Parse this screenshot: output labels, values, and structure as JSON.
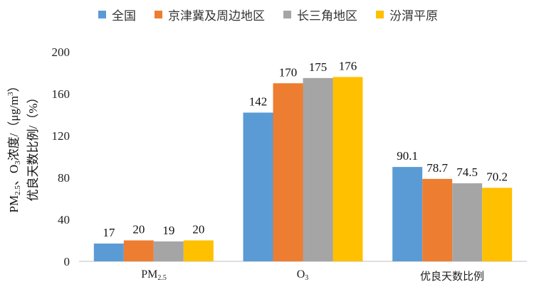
{
  "chart_data": {
    "type": "bar",
    "categories": [
      {
        "base": "PM",
        "sub": "2.5"
      },
      {
        "base": "O",
        "sub": "3"
      },
      {
        "base": "优良天数比例",
        "sub": ""
      }
    ],
    "series": [
      {
        "name": "全国",
        "color": "#5b9bd5",
        "values": [
          17,
          142,
          90.1
        ]
      },
      {
        "name": "京津冀及周边地区",
        "color": "#ed7d31",
        "values": [
          20,
          170,
          78.7
        ]
      },
      {
        "name": "长三角地区",
        "color": "#a5a5a5",
        "values": [
          19,
          175,
          74.5
        ]
      },
      {
        "name": "汾渭平原",
        "color": "#ffc000",
        "values": [
          20,
          176,
          70.2
        ]
      }
    ],
    "ylabel": {
      "line1": [
        "PM",
        "2.5",
        "、O",
        "3",
        "浓度/（μg/m",
        "3",
        "）"
      ],
      "line2": "优良天数比例/（%）"
    },
    "ylim": [
      0,
      200
    ],
    "yticks": [
      "0",
      "40",
      "80",
      "120",
      "160",
      "200"
    ],
    "grid": false,
    "legend": "top"
  }
}
